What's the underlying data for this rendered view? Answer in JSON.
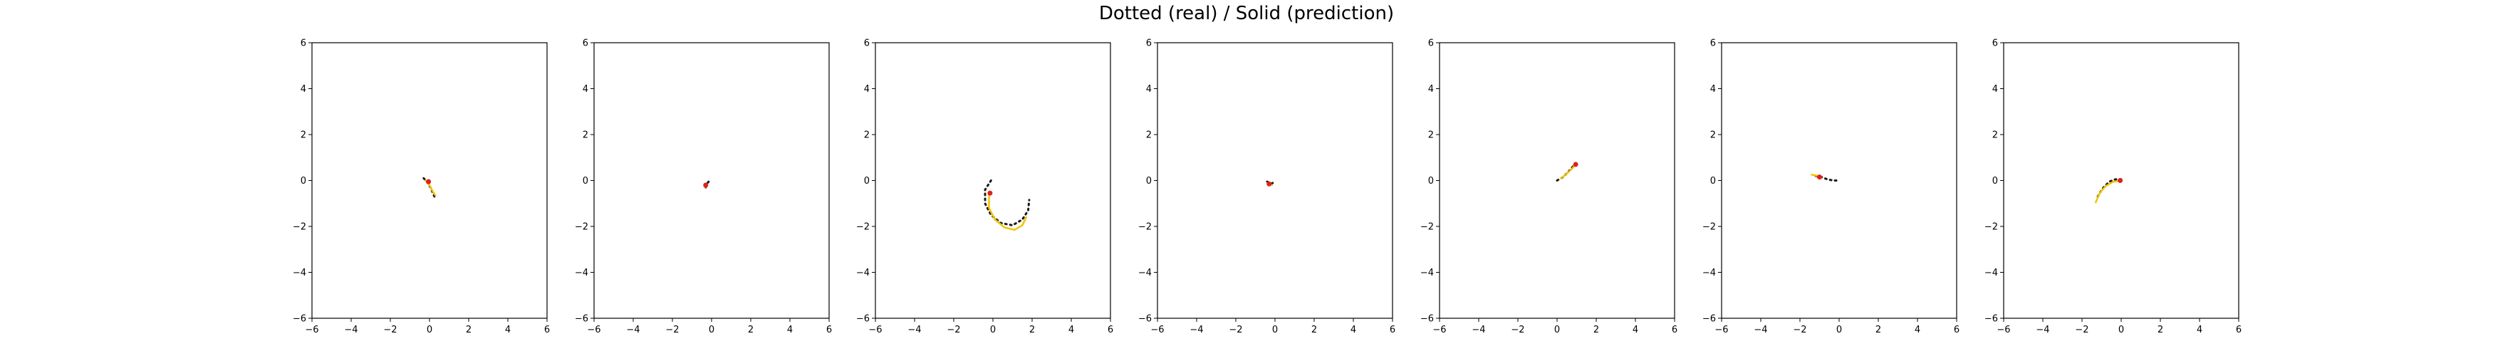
{
  "figure": {
    "suptitle": "Dotted (real) / Solid (prediction)",
    "colors": {
      "real": "#1a1a1a",
      "prediction": "#f2c200",
      "endpoint": "#e02020"
    }
  },
  "chart_data": [
    {
      "type": "line",
      "xlim": [
        -6,
        6
      ],
      "ylim": [
        -6,
        6
      ],
      "xticks": [
        -6,
        -4,
        -2,
        0,
        2,
        4,
        6
      ],
      "yticks": [
        -6,
        -4,
        -2,
        0,
        2,
        4,
        6
      ],
      "grid": false,
      "series": [
        {
          "style": "dotted",
          "points": [
            [
              -0.3,
              0.1
            ],
            [
              -0.1,
              -0.1
            ],
            [
              0.05,
              -0.3
            ],
            [
              0.15,
              -0.5
            ],
            [
              0.25,
              -0.7
            ]
          ]
        },
        {
          "style": "solid",
          "points": [
            [
              -0.2,
              0.0
            ],
            [
              0.0,
              -0.2
            ],
            [
              0.15,
              -0.45
            ],
            [
              0.3,
              -0.65
            ]
          ]
        }
      ],
      "endpoints": [
        [
          -0.05,
          -0.05
        ]
      ]
    },
    {
      "type": "line",
      "xlim": [
        -6,
        6
      ],
      "ylim": [
        -6,
        6
      ],
      "xticks": [
        -6,
        -4,
        -2,
        0,
        2,
        4,
        6
      ],
      "yticks": [
        -6,
        -4,
        -2,
        0,
        2,
        4,
        6
      ],
      "grid": false,
      "series": [
        {
          "style": "dotted",
          "points": [
            [
              -0.3,
              -0.3
            ],
            [
              -0.2,
              -0.1
            ],
            [
              -0.1,
              0.0
            ]
          ]
        },
        {
          "style": "solid",
          "points": [
            [
              -0.35,
              -0.3
            ],
            [
              -0.25,
              -0.15
            ]
          ]
        }
      ],
      "endpoints": [
        [
          -0.3,
          -0.2
        ]
      ]
    },
    {
      "type": "line",
      "xlim": [
        -6,
        6
      ],
      "ylim": [
        -6,
        6
      ],
      "xticks": [
        -6,
        -4,
        -2,
        0,
        2,
        4,
        6
      ],
      "yticks": [
        -6,
        -4,
        -2,
        0,
        2,
        4,
        6
      ],
      "grid": false,
      "series": [
        {
          "style": "dotted",
          "points": [
            [
              -0.1,
              0.0
            ],
            [
              -0.4,
              -0.4
            ],
            [
              -0.4,
              -1.0
            ],
            [
              -0.1,
              -1.5
            ],
            [
              0.4,
              -1.85
            ],
            [
              1.0,
              -1.95
            ],
            [
              1.5,
              -1.7
            ],
            [
              1.8,
              -1.3
            ],
            [
              1.85,
              -0.85
            ]
          ]
        },
        {
          "style": "solid",
          "points": [
            [
              -0.2,
              -0.6
            ],
            [
              -0.2,
              -1.2
            ],
            [
              0.1,
              -1.7
            ],
            [
              0.6,
              -2.05
            ],
            [
              1.1,
              -2.15
            ],
            [
              1.5,
              -1.95
            ],
            [
              1.7,
              -1.6
            ]
          ]
        }
      ],
      "endpoints": [
        [
          -0.15,
          -0.55
        ]
      ]
    },
    {
      "type": "line",
      "xlim": [
        -6,
        6
      ],
      "ylim": [
        -6,
        6
      ],
      "xticks": [
        -6,
        -4,
        -2,
        0,
        2,
        4,
        6
      ],
      "yticks": [
        -6,
        -4,
        -2,
        0,
        2,
        4,
        6
      ],
      "grid": false,
      "series": [
        {
          "style": "dotted",
          "points": [
            [
              -0.4,
              -0.05
            ],
            [
              -0.2,
              -0.15
            ],
            [
              0.0,
              -0.05
            ]
          ]
        },
        {
          "style": "solid",
          "points": [
            [
              -0.35,
              -0.1
            ],
            [
              -0.15,
              -0.2
            ]
          ]
        }
      ],
      "endpoints": [
        [
          -0.3,
          -0.15
        ]
      ]
    },
    {
      "type": "line",
      "xlim": [
        -6,
        6
      ],
      "ylim": [
        -6,
        6
      ],
      "xticks": [
        -6,
        -4,
        -2,
        0,
        2,
        4,
        6
      ],
      "yticks": [
        -6,
        -4,
        -2,
        0,
        2,
        4,
        6
      ],
      "grid": false,
      "series": [
        {
          "style": "dotted",
          "points": [
            [
              0.0,
              0.0
            ],
            [
              0.3,
              0.15
            ],
            [
              0.55,
              0.35
            ],
            [
              0.8,
              0.6
            ],
            [
              0.95,
              0.75
            ]
          ]
        },
        {
          "style": "solid",
          "points": [
            [
              0.2,
              0.1
            ],
            [
              0.5,
              0.3
            ],
            [
              0.75,
              0.5
            ],
            [
              0.95,
              0.7
            ]
          ]
        }
      ],
      "endpoints": [
        [
          0.95,
          0.7
        ]
      ]
    },
    {
      "type": "line",
      "xlim": [
        -6,
        6
      ],
      "ylim": [
        -6,
        6
      ],
      "xticks": [
        -6,
        -4,
        -2,
        0,
        2,
        4,
        6
      ],
      "yticks": [
        -6,
        -4,
        -2,
        0,
        2,
        4,
        6
      ],
      "grid": false,
      "series": [
        {
          "style": "dotted",
          "points": [
            [
              -1.2,
              0.2
            ],
            [
              -0.9,
              0.15
            ],
            [
              -0.6,
              0.05
            ],
            [
              -0.3,
              0.0
            ],
            [
              0.0,
              0.0
            ]
          ]
        },
        {
          "style": "solid",
          "points": [
            [
              -1.4,
              0.25
            ],
            [
              -1.1,
              0.2
            ],
            [
              -0.9,
              0.1
            ]
          ]
        }
      ],
      "endpoints": [
        [
          -1.0,
          0.15
        ]
      ]
    },
    {
      "type": "line",
      "xlim": [
        -6,
        6
      ],
      "ylim": [
        -6,
        6
      ],
      "xticks": [
        -6,
        -4,
        -2,
        0,
        2,
        4,
        6
      ],
      "yticks": [
        -6,
        -4,
        -2,
        0,
        2,
        4,
        6
      ],
      "grid": false,
      "series": [
        {
          "style": "dotted",
          "points": [
            [
              0.0,
              0.05
            ],
            [
              -0.3,
              0.05
            ],
            [
              -0.6,
              -0.05
            ],
            [
              -0.9,
              -0.3
            ],
            [
              -1.1,
              -0.55
            ],
            [
              -1.25,
              -0.8
            ]
          ]
        },
        {
          "style": "solid",
          "points": [
            [
              0.0,
              0.0
            ],
            [
              -0.4,
              -0.05
            ],
            [
              -0.8,
              -0.25
            ],
            [
              -1.1,
              -0.55
            ],
            [
              -1.3,
              -0.95
            ]
          ]
        }
      ],
      "endpoints": [
        [
          -0.05,
          0.0
        ]
      ]
    }
  ]
}
